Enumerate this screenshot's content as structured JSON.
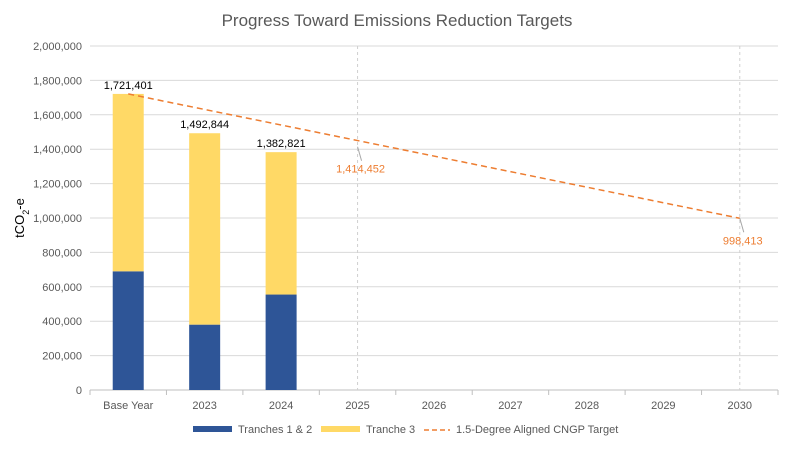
{
  "chart_data": {
    "type": "bar",
    "stacked": true,
    "title": "Progress Toward Emissions Reduction Targets",
    "ylabel": "tCO2-e",
    "xlabel": "",
    "ylim": [
      0,
      2000000
    ],
    "yticks": [
      0,
      200000,
      400000,
      600000,
      800000,
      1000000,
      1200000,
      1400000,
      1600000,
      1800000,
      2000000
    ],
    "ytick_labels": [
      "0",
      "200,000",
      "400,000",
      "600,000",
      "800,000",
      "1,000,000",
      "1,200,000",
      "1,400,000",
      "1,600,000",
      "1,800,000",
      "2,000,000"
    ],
    "categories": [
      "Base Year",
      "2023",
      "2024",
      "2025",
      "2026",
      "2027",
      "2028",
      "2029",
      "2030"
    ],
    "series": [
      {
        "name": "Tranches 1 & 2",
        "color": "#2E5597",
        "values": [
          690000,
          380000,
          555000,
          null,
          null,
          null,
          null,
          null,
          null
        ]
      },
      {
        "name": "Tranche 3",
        "color": "#FFD966",
        "values": [
          1031401,
          1112844,
          827821,
          null,
          null,
          null,
          null,
          null,
          null
        ]
      }
    ],
    "bar_totals": [
      "1,721,401",
      "1,492,844",
      "1,382,821"
    ],
    "target": {
      "name": "1.5-Degree Aligned CNGP Target",
      "color": "#ED7D31",
      "points": [
        {
          "category": "Base Year",
          "value": 1721401
        },
        {
          "category": "2030",
          "value": 998413
        }
      ],
      "annotations": [
        {
          "category": "2025",
          "value": 1414452,
          "label": "1,414,452"
        },
        {
          "category": "2030",
          "value": 998413,
          "label": "998,413"
        }
      ]
    },
    "legend_position": "bottom",
    "grid": "horizontal"
  }
}
